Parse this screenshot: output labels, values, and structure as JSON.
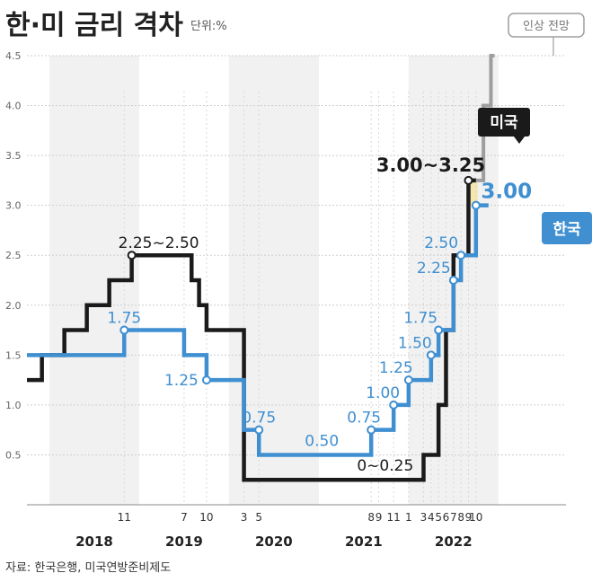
{
  "title": "한·미 금리 격차",
  "unit": "단위:%",
  "source": "자료: 한국은행, 미국연방준비제도",
  "outlook_label": "인상 전망",
  "colors": {
    "us": "#1a1a1a",
    "korea": "#3f8fd1",
    "forecast": "#9e9e9e",
    "gap": "#f3e6b0",
    "grid": "#cfcfcf",
    "band": "#f1f1f1"
  },
  "chart_data": {
    "type": "line",
    "step": true,
    "ylim": [
      0,
      4.5
    ],
    "yticks": [
      "0.5",
      "1.0",
      "1.5",
      "2.0",
      "2.5",
      "3.0",
      "3.5",
      "4.0",
      "4.5"
    ],
    "years": [
      "2018",
      "2019",
      "2020",
      "2021",
      "2022"
    ],
    "month_ticks": [
      "11",
      "7",
      "10",
      "3",
      "5",
      "8",
      "9",
      "11",
      "1",
      "3",
      "4",
      "5",
      "6",
      "7",
      "8",
      "9",
      "10"
    ],
    "series": [
      {
        "name": "미국",
        "step_points": [
          [
            "2017-10",
            1.25
          ],
          [
            "2017-12",
            1.5
          ],
          [
            "2018-03",
            1.75
          ],
          [
            "2018-06",
            2.0
          ],
          [
            "2018-09",
            2.25
          ],
          [
            "2018-12",
            2.5
          ],
          [
            "2019-08",
            2.25
          ],
          [
            "2019-09",
            2.0
          ],
          [
            "2019-10",
            1.75
          ],
          [
            "2020-03",
            0.25
          ],
          [
            "2022-03",
            0.5
          ],
          [
            "2022-05",
            1.0
          ],
          [
            "2022-06",
            1.75
          ],
          [
            "2022-07",
            2.5
          ],
          [
            "2022-09",
            3.25
          ]
        ],
        "labels": [
          "2.25~2.50",
          "0~0.25",
          "3.00~3.25"
        ],
        "badge": "미국"
      },
      {
        "name": "한국",
        "step_points": [
          [
            "2017-10",
            1.5
          ],
          [
            "2018-11",
            1.75
          ],
          [
            "2019-07",
            1.5
          ],
          [
            "2019-10",
            1.25
          ],
          [
            "2020-03",
            0.75
          ],
          [
            "2020-05",
            0.5
          ],
          [
            "2021-08",
            0.75
          ],
          [
            "2021-11",
            1.0
          ],
          [
            "2022-01",
            1.25
          ],
          [
            "2022-04",
            1.5
          ],
          [
            "2022-05",
            1.75
          ],
          [
            "2022-07",
            2.25
          ],
          [
            "2022-08",
            2.5
          ],
          [
            "2022-10",
            3.0
          ]
        ],
        "labels": [
          "1.75",
          "1.25",
          "0.75",
          "0.50",
          "0.75",
          "1.00",
          "1.25",
          "1.50",
          "1.75",
          "2.25",
          "2.50",
          "3.00"
        ],
        "badge": "한국"
      },
      {
        "name": "인상 전망",
        "forecast": true,
        "step_points": [
          [
            "2022-09",
            3.25
          ],
          [
            "2022-11",
            4.0
          ],
          [
            "2022-12",
            4.5
          ]
        ]
      }
    ]
  }
}
